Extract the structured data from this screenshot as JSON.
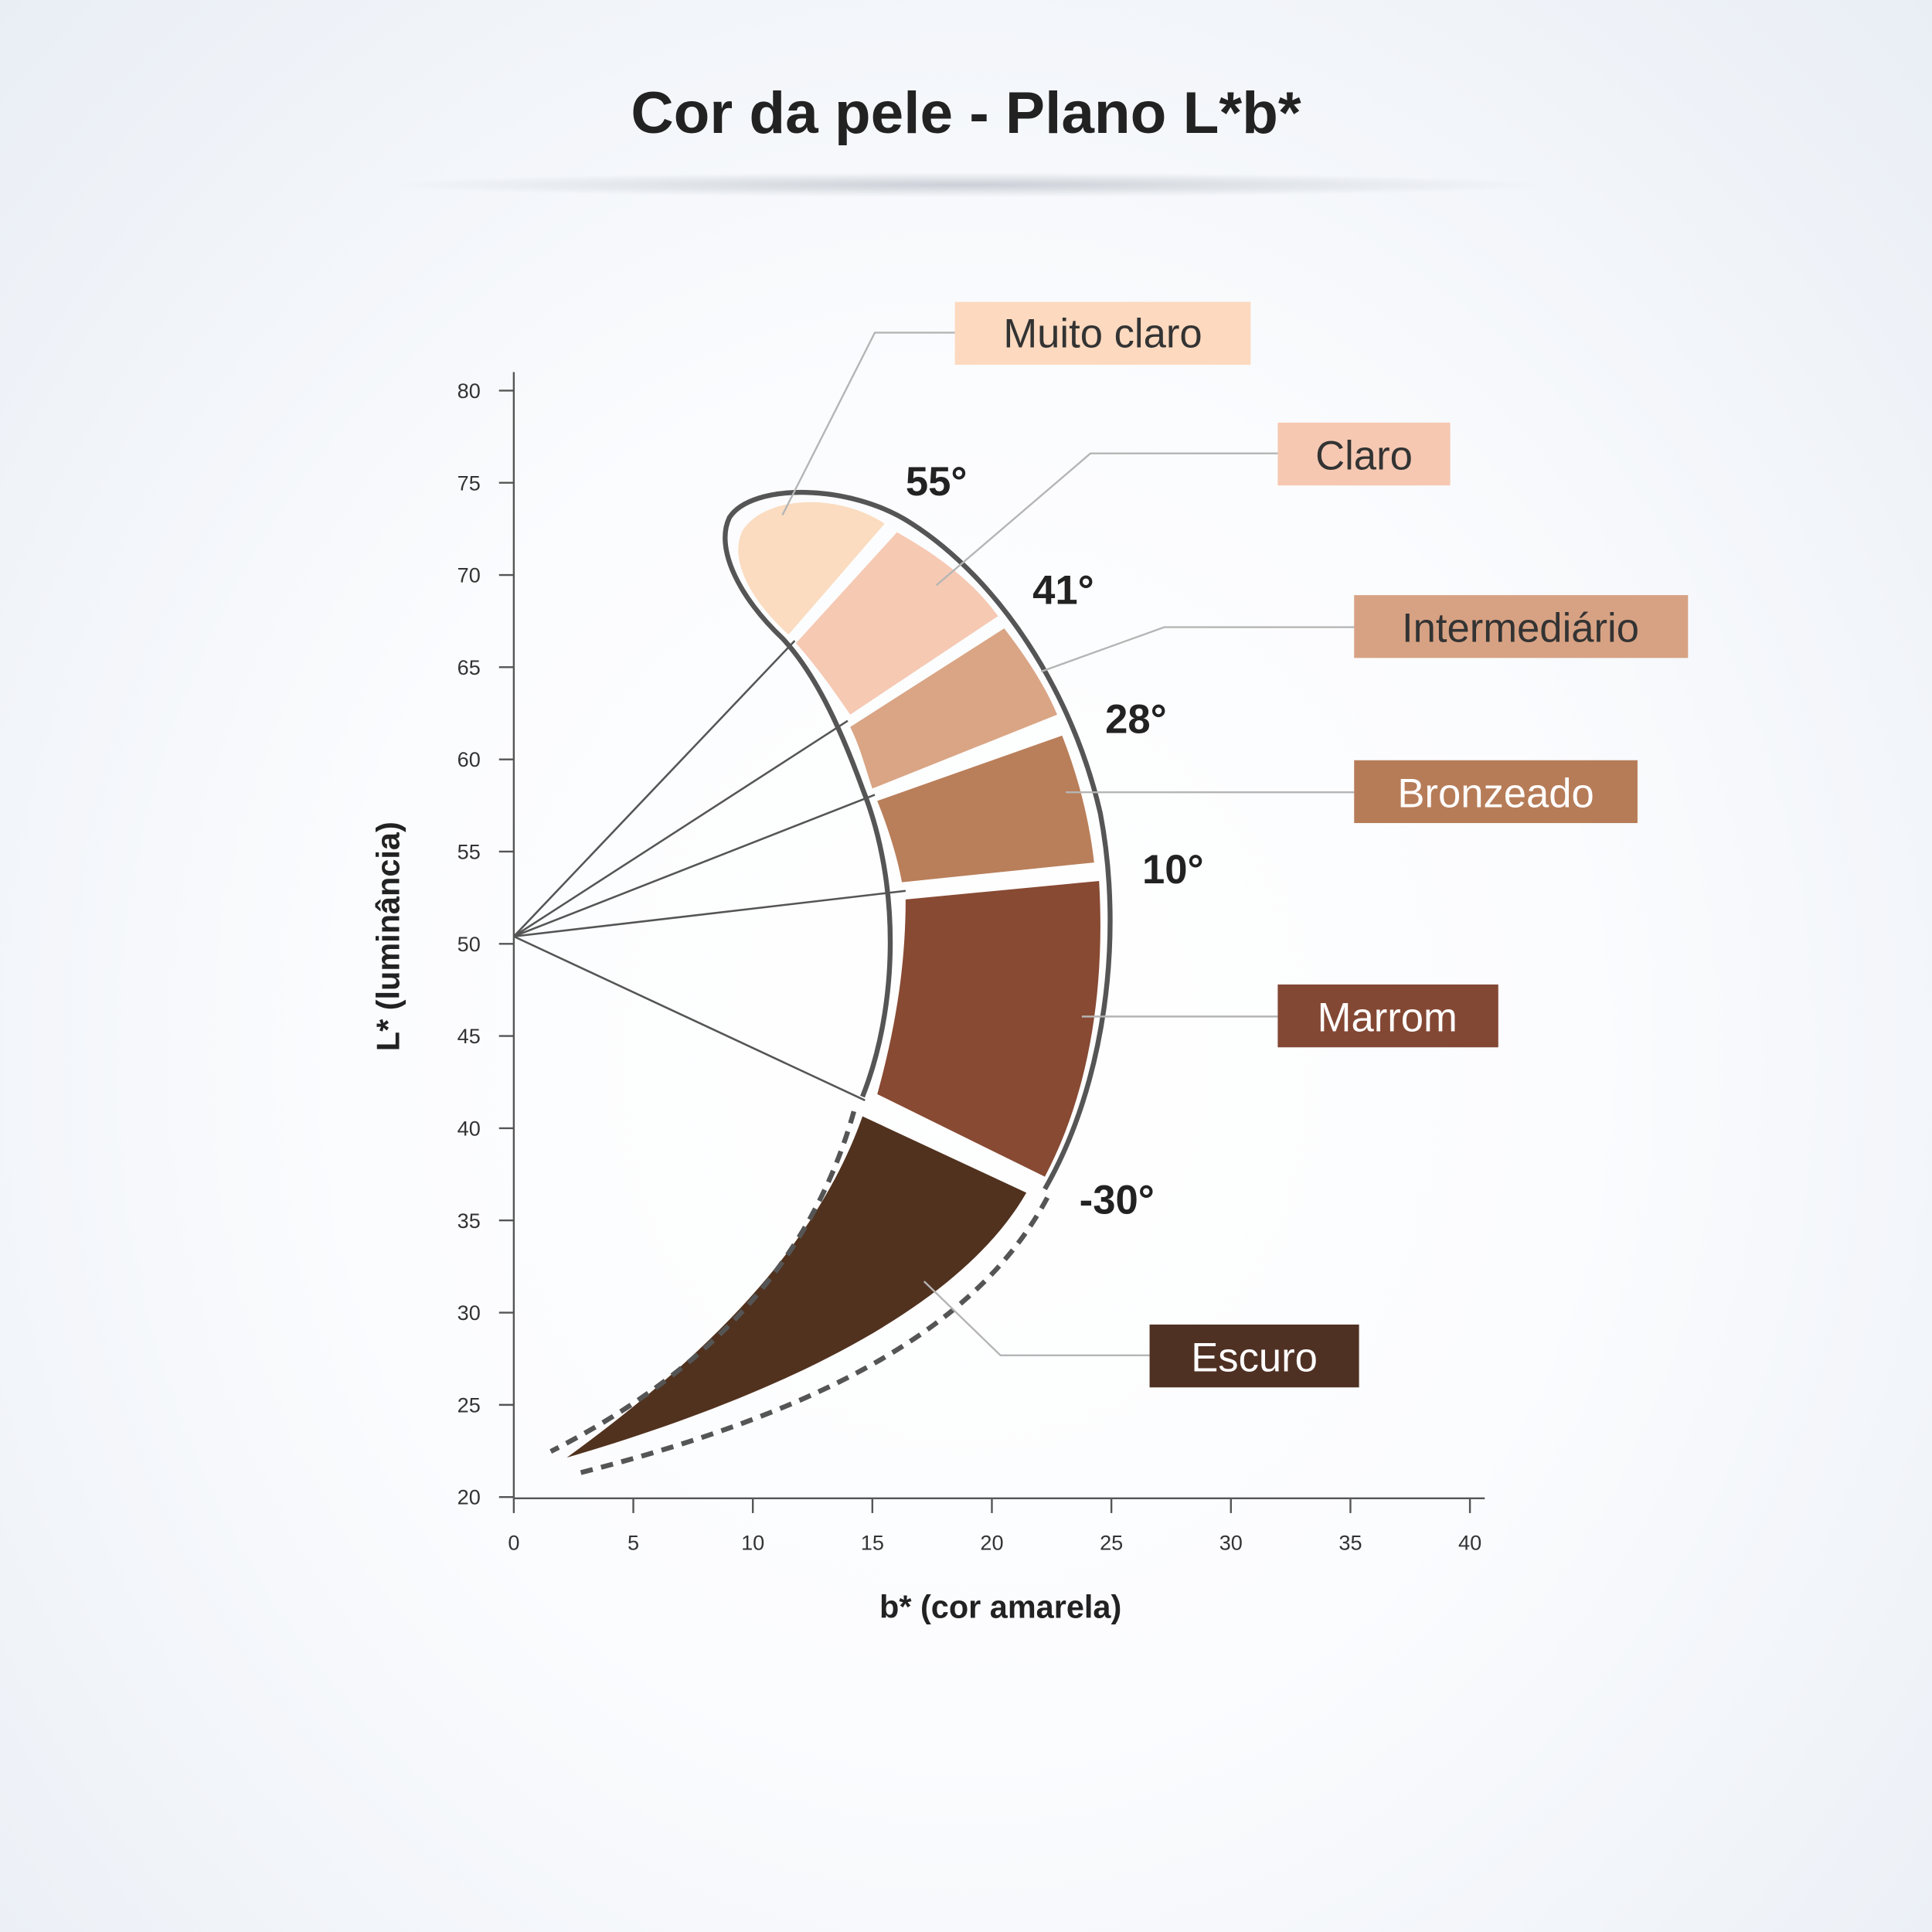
{
  "title": "Cor da pele - Plano L*b*",
  "chart_data": {
    "type": "diagram",
    "title": "Cor da pele - Plano L*b*",
    "xlabel": "b* (cor amarela)",
    "ylabel": "L* (luminância)",
    "xlim": [
      0,
      40
    ],
    "ylim": [
      20,
      80
    ],
    "xticks": [
      0,
      5,
      10,
      15,
      20,
      25,
      30,
      35,
      40
    ],
    "yticks": [
      20,
      25,
      30,
      35,
      40,
      45,
      50,
      55,
      60,
      65,
      70,
      75,
      80
    ],
    "grid": false,
    "origin_point": {
      "b": 0,
      "L": 50.5
    },
    "angle_boundaries": [
      "55°",
      "41°",
      "28°",
      "10°",
      "-30°"
    ],
    "regions": [
      {
        "name": "Muito claro",
        "color": "#fbdcc0",
        "label_color": "#fcd9bf",
        "text_color": "#333333"
      },
      {
        "name": "Claro",
        "color": "#f6c9b3",
        "label_color": "#f6c8b2",
        "text_color": "#333333"
      },
      {
        "name": "Intermediário",
        "color": "#d9a585",
        "label_color": "#d7a283",
        "text_color": "#333333"
      },
      {
        "name": "Bronzeado",
        "color": "#b97f5a",
        "label_color": "#b67c58",
        "text_color": "#ffffff"
      },
      {
        "name": "Marrom",
        "color": "#884a33",
        "label_color": "#834834",
        "text_color": "#ffffff"
      },
      {
        "name": "Escuro",
        "color": "#51321f",
        "label_color": "#4f3124",
        "text_color": "#ffffff"
      }
    ]
  }
}
